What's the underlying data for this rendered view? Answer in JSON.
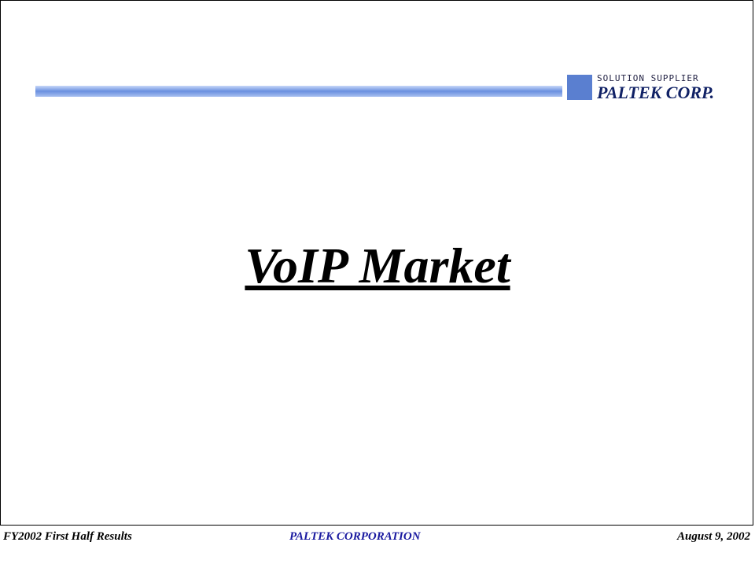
{
  "logo": {
    "tagline": "SOLUTION SUPPLIER",
    "name": "PALTEK CORP."
  },
  "title": "VoIP Market",
  "footer": {
    "left": "FY2002 First Half Results",
    "center": "PALTEK CORPORATION",
    "right": "August 9, 2002"
  }
}
